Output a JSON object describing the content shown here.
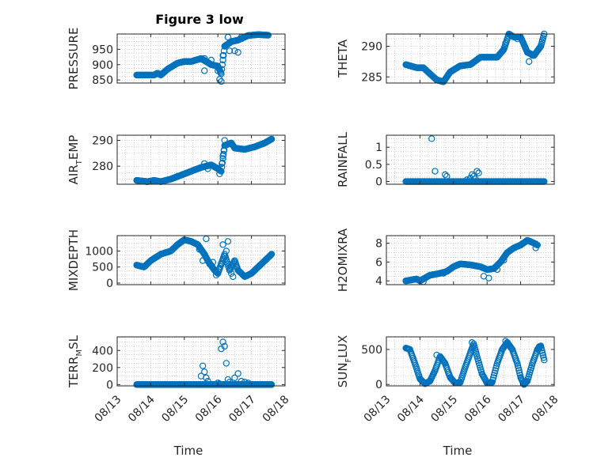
{
  "title": "Figure 3 low",
  "colors": {
    "marker": "#0072BD",
    "axis": "#262626",
    "grid": "#b0b0b0",
    "background": "#ffffff"
  },
  "time_axis": {
    "label": "Time",
    "ticks": [
      {
        "value": 13,
        "label": "08/13"
      },
      {
        "value": 14,
        "label": "08/14"
      },
      {
        "value": 15,
        "label": "08/15"
      },
      {
        "value": 16,
        "label": "08/16"
      },
      {
        "value": 17,
        "label": "08/17"
      },
      {
        "value": 18,
        "label": "08/18"
      }
    ]
  },
  "chart_data": [
    {
      "type": "scatter",
      "ylabel": "PRESSURE",
      "ylabel_main": "PRESSURE",
      "ylabel_sub": "",
      "ylabel_rest": "",
      "xlim": [
        13,
        18
      ],
      "ylim": [
        840,
        1000
      ],
      "grid": true,
      "yticks": [
        850,
        900,
        950
      ],
      "keypoints": [
        [
          13.58,
          866
        ],
        [
          13.9,
          866
        ],
        [
          14.1,
          866
        ],
        [
          14.2,
          872
        ],
        [
          14.3,
          866
        ],
        [
          14.5,
          885
        ],
        [
          14.8,
          905
        ],
        [
          15.0,
          910
        ],
        [
          15.2,
          910
        ],
        [
          15.5,
          920
        ],
        [
          15.8,
          900
        ],
        [
          16.0,
          895
        ],
        [
          16.1,
          870
        ],
        [
          16.2,
          960
        ],
        [
          16.4,
          975
        ],
        [
          16.6,
          980
        ],
        [
          16.9,
          995
        ],
        [
          17.2,
          998
        ],
        [
          17.5,
          996
        ]
      ],
      "extras": [
        [
          15.6,
          920
        ],
        [
          15.6,
          880
        ],
        [
          15.8,
          915
        ],
        [
          16.0,
          880
        ],
        [
          16.05,
          852
        ],
        [
          16.1,
          845
        ],
        [
          16.15,
          930
        ],
        [
          16.3,
          990
        ],
        [
          16.35,
          945
        ],
        [
          16.5,
          945
        ],
        [
          16.6,
          940
        ],
        [
          16.7,
          990
        ]
      ]
    },
    {
      "type": "scatter",
      "ylabel": "THETA",
      "ylabel_main": "THETA",
      "ylabel_sub": "",
      "ylabel_rest": "",
      "xlim": [
        13,
        18
      ],
      "ylim": [
        284,
        292
      ],
      "grid": true,
      "yticks": [
        285,
        290
      ],
      "keypoints": [
        [
          13.58,
          287
        ],
        [
          13.9,
          286.5
        ],
        [
          14.1,
          286.5
        ],
        [
          14.3,
          285.5
        ],
        [
          14.5,
          284.5
        ],
        [
          14.7,
          284.2
        ],
        [
          14.9,
          285.8
        ],
        [
          15.2,
          286.8
        ],
        [
          15.5,
          287
        ],
        [
          15.8,
          288.2
        ],
        [
          16.1,
          288.2
        ],
        [
          16.3,
          288.2
        ],
        [
          16.5,
          289.5
        ],
        [
          16.65,
          292
        ],
        [
          16.8,
          291.5
        ],
        [
          17.0,
          291.5
        ],
        [
          17.2,
          289
        ],
        [
          17.4,
          288.5
        ],
        [
          17.6,
          290
        ],
        [
          17.7,
          292
        ]
      ],
      "extras": [
        [
          16.55,
          290.5
        ],
        [
          16.9,
          291.2
        ],
        [
          17.25,
          287.5
        ],
        [
          17.35,
          288.5
        ]
      ]
    },
    {
      "type": "scatter",
      "ylabel": "AIR_TEMP",
      "ylabel_main": "AIR",
      "ylabel_sub": "T",
      "ylabel_rest": "EMP",
      "xlim": [
        13,
        18
      ],
      "ylim": [
        273,
        292
      ],
      "grid": true,
      "yticks": [
        280,
        290
      ],
      "keypoints": [
        [
          13.58,
          274.5
        ],
        [
          13.9,
          274
        ],
        [
          14.1,
          274.5
        ],
        [
          14.3,
          274
        ],
        [
          14.6,
          275
        ],
        [
          14.9,
          276.5
        ],
        [
          15.2,
          278
        ],
        [
          15.5,
          279.5
        ],
        [
          15.8,
          280.5
        ],
        [
          16.0,
          279
        ],
        [
          16.1,
          278
        ],
        [
          16.2,
          288
        ],
        [
          16.4,
          289
        ],
        [
          16.5,
          287
        ],
        [
          16.8,
          286.5
        ],
        [
          17.1,
          287.5
        ],
        [
          17.4,
          289
        ],
        [
          17.6,
          290.5
        ]
      ],
      "extras": [
        [
          15.6,
          281
        ],
        [
          15.7,
          279
        ],
        [
          16.05,
          277
        ],
        [
          16.12,
          281
        ],
        [
          16.15,
          284
        ],
        [
          16.18,
          286
        ],
        [
          16.2,
          290
        ]
      ]
    },
    {
      "type": "scatter",
      "ylabel": "RAINFALL",
      "ylabel_main": "RAINFALL",
      "ylabel_sub": "",
      "ylabel_rest": "",
      "xlim": [
        13,
        18
      ],
      "ylim": [
        -0.08,
        1.35
      ],
      "grid": true,
      "yticks": [
        0,
        0.5,
        1
      ],
      "keypoints": [
        [
          13.58,
          0
        ],
        [
          17.7,
          0
        ]
      ],
      "extras": [
        [
          14.35,
          1.25
        ],
        [
          14.45,
          0.3
        ],
        [
          14.75,
          0.2
        ],
        [
          14.8,
          0.15
        ],
        [
          15.4,
          0.05
        ],
        [
          15.5,
          0.1
        ],
        [
          15.55,
          0.2
        ],
        [
          15.6,
          0.15
        ],
        [
          15.7,
          0.3
        ],
        [
          15.75,
          0.25
        ],
        [
          15.65,
          0.08
        ]
      ]
    },
    {
      "type": "scatter",
      "ylabel": "MIXDEPTH",
      "ylabel_main": "MIXDEPTH",
      "ylabel_sub": "",
      "ylabel_rest": "",
      "xlim": [
        13,
        18
      ],
      "ylim": [
        -50,
        1480
      ],
      "grid": true,
      "yticks": [
        0,
        500,
        1000
      ],
      "keypoints": [
        [
          13.58,
          560
        ],
        [
          13.8,
          500
        ],
        [
          14.0,
          700
        ],
        [
          14.3,
          900
        ],
        [
          14.6,
          1000
        ],
        [
          14.8,
          1200
        ],
        [
          15.0,
          1350
        ],
        [
          15.2,
          1300
        ],
        [
          15.4,
          1200
        ],
        [
          15.6,
          900
        ],
        [
          15.7,
          700
        ],
        [
          15.9,
          400
        ],
        [
          16.0,
          300
        ],
        [
          16.2,
          900
        ],
        [
          16.35,
          400
        ],
        [
          16.5,
          700
        ],
        [
          16.6,
          400
        ],
        [
          16.8,
          200
        ],
        [
          17.0,
          300
        ],
        [
          17.2,
          500
        ],
        [
          17.4,
          700
        ],
        [
          17.6,
          900
        ]
      ],
      "extras": [
        [
          15.45,
          1050
        ],
        [
          15.55,
          700
        ],
        [
          15.65,
          1380
        ],
        [
          15.75,
          600
        ],
        [
          15.85,
          650
        ],
        [
          15.95,
          250
        ],
        [
          16.1,
          600
        ],
        [
          16.15,
          1200
        ],
        [
          16.25,
          1000
        ],
        [
          16.3,
          1300
        ],
        [
          16.4,
          300
        ],
        [
          16.45,
          200
        ]
      ]
    },
    {
      "type": "scatter",
      "ylabel": "H2OMIXRA",
      "ylabel_main": "H2OMIXRA",
      "ylabel_sub": "",
      "ylabel_rest": "",
      "xlim": [
        13,
        18
      ],
      "ylim": [
        3.6,
        8.8
      ],
      "grid": true,
      "yticks": [
        4,
        6,
        8
      ],
      "keypoints": [
        [
          13.58,
          4
        ],
        [
          13.9,
          4.2
        ],
        [
          14.0,
          4
        ],
        [
          14.3,
          4.6
        ],
        [
          14.6,
          4.8
        ],
        [
          14.8,
          5
        ],
        [
          15.0,
          5.5
        ],
        [
          15.2,
          5.8
        ],
        [
          15.5,
          5.7
        ],
        [
          15.8,
          5.5
        ],
        [
          16.0,
          5.2
        ],
        [
          16.2,
          5.3
        ],
        [
          16.4,
          6
        ],
        [
          16.6,
          7
        ],
        [
          16.8,
          7.5
        ],
        [
          17.0,
          7.8
        ],
        [
          17.2,
          8.3
        ],
        [
          17.4,
          8
        ],
        [
          17.5,
          7.8
        ]
      ],
      "extras": [
        [
          14.1,
          3.9
        ],
        [
          14.7,
          4.8
        ],
        [
          15.9,
          4.5
        ],
        [
          16.05,
          4.3
        ],
        [
          16.3,
          5.2
        ],
        [
          16.5,
          6.2
        ],
        [
          17.45,
          7.5
        ]
      ]
    },
    {
      "type": "scatter",
      "ylabel": "TERR_MSL",
      "ylabel_main": "TERR",
      "ylabel_sub": "M",
      "ylabel_rest": "SL",
      "xlim": [
        13,
        18
      ],
      "ylim": [
        -15,
        560
      ],
      "grid": true,
      "yticks": [
        0,
        200,
        400
      ],
      "keypoints": [
        [
          13.58,
          0
        ],
        [
          15.3,
          0
        ],
        [
          16.0,
          0
        ],
        [
          16.5,
          0
        ],
        [
          17.0,
          0
        ],
        [
          17.6,
          0
        ]
      ],
      "extras": [
        [
          15.5,
          100
        ],
        [
          15.55,
          220
        ],
        [
          15.6,
          150
        ],
        [
          15.65,
          80
        ],
        [
          15.7,
          40
        ],
        [
          16.0,
          20
        ],
        [
          16.05,
          10
        ],
        [
          16.1,
          420
        ],
        [
          16.15,
          500
        ],
        [
          16.2,
          450
        ],
        [
          16.25,
          250
        ],
        [
          16.3,
          60
        ],
        [
          16.35,
          30
        ],
        [
          16.5,
          80
        ],
        [
          16.6,
          130
        ],
        [
          16.7,
          40
        ],
        [
          16.8,
          30
        ],
        [
          16.9,
          20
        ]
      ]
    },
    {
      "type": "scatter",
      "ylabel": "SUN_FLUX",
      "ylabel_main": "SUN",
      "ylabel_sub": "F",
      "ylabel_rest": "LUX",
      "xlim": [
        13,
        18
      ],
      "ylim": [
        -20,
        680
      ],
      "grid": true,
      "yticks": [
        0,
        500
      ],
      "keypoints": [
        [
          13.58,
          520
        ],
        [
          13.7,
          500
        ],
        [
          13.85,
          300
        ],
        [
          14.0,
          80
        ],
        [
          14.15,
          10
        ],
        [
          14.3,
          50
        ],
        [
          14.45,
          200
        ],
        [
          14.6,
          400
        ],
        [
          14.75,
          300
        ],
        [
          14.9,
          100
        ],
        [
          15.05,
          20
        ],
        [
          15.2,
          30
        ],
        [
          15.35,
          250
        ],
        [
          15.5,
          450
        ],
        [
          15.6,
          580
        ],
        [
          15.7,
          400
        ],
        [
          15.85,
          150
        ],
        [
          16.0,
          20
        ],
        [
          16.15,
          30
        ],
        [
          16.3,
          300
        ],
        [
          16.45,
          500
        ],
        [
          16.6,
          600
        ],
        [
          16.75,
          500
        ],
        [
          16.9,
          300
        ],
        [
          17.0,
          100
        ],
        [
          17.1,
          0
        ],
        [
          17.2,
          50
        ],
        [
          17.35,
          300
        ],
        [
          17.5,
          500
        ],
        [
          17.6,
          550
        ],
        [
          17.7,
          350
        ]
      ],
      "extras": [
        [
          14.5,
          420
        ],
        [
          15.55,
          600
        ],
        [
          16.55,
          620
        ],
        [
          17.55,
          540
        ]
      ]
    }
  ]
}
